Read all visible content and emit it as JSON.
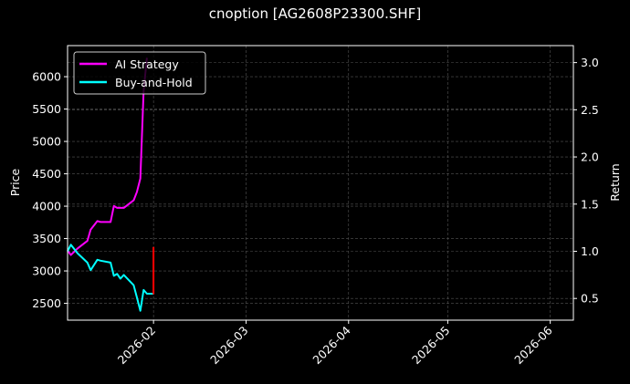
{
  "chart_data": {
    "type": "line",
    "title": "cnoption [AG2608P23300.SHF]",
    "xlabel": "",
    "ylabel": "Price",
    "ylabel_right": "Return",
    "grid": true,
    "legend_position": "upper left",
    "x_ticks": [
      "2026-02",
      "2026-03",
      "2026-04",
      "2026-05",
      "2026-06"
    ],
    "y_ticks_left": [
      2500,
      3000,
      3500,
      4000,
      4500,
      5000,
      5500,
      6000
    ],
    "y_ticks_right": [
      0.5,
      1.0,
      1.5,
      2.0,
      2.5,
      3.0
    ],
    "ylim_left": [
      2240,
      6480
    ],
    "ylim_right": [
      0.27,
      3.18
    ],
    "xlim": [
      "2026-01-06",
      "2026-06-08"
    ],
    "series": [
      {
        "name": "AI Strategy",
        "axis": "right",
        "color": "#ff00ff",
        "x": [
          "2026-01-06",
          "2026-01-07",
          "2026-01-09",
          "2026-01-12",
          "2026-01-13",
          "2026-01-15",
          "2026-01-16",
          "2026-01-19",
          "2026-01-20",
          "2026-01-21",
          "2026-01-23",
          "2026-01-26",
          "2026-01-27",
          "2026-01-28",
          "2026-01-29",
          "2026-01-30"
        ],
        "values": [
          1.01,
          0.96,
          1.03,
          1.11,
          1.23,
          1.32,
          1.31,
          1.31,
          1.48,
          1.46,
          1.46,
          1.54,
          1.63,
          1.77,
          2.7,
          3.05
        ]
      },
      {
        "name": "Buy-and-Hold",
        "axis": "right",
        "color": "#00ffff",
        "x": [
          "2026-01-06",
          "2026-01-07",
          "2026-01-09",
          "2026-01-12",
          "2026-01-13",
          "2026-01-15",
          "2026-01-16",
          "2026-01-19",
          "2026-01-20",
          "2026-01-21",
          "2026-01-22",
          "2026-01-23",
          "2026-01-26",
          "2026-01-27",
          "2026-01-28",
          "2026-01-29",
          "2026-01-30",
          "2026-02-01"
        ],
        "values": [
          1.0,
          1.07,
          0.98,
          0.88,
          0.8,
          0.91,
          0.9,
          0.88,
          0.74,
          0.76,
          0.71,
          0.75,
          0.64,
          0.51,
          0.37,
          0.59,
          0.55,
          0.55
        ]
      },
      {
        "name": "Price",
        "axis": "left",
        "color": "#ff0000",
        "x": [
          "2026-02-01",
          "2026-02-01"
        ],
        "values": [
          3370,
          2640
        ]
      }
    ]
  },
  "legend": {
    "items": [
      {
        "label": "AI Strategy",
        "color": "#ff00ff"
      },
      {
        "label": "Buy-and-Hold",
        "color": "#00ffff"
      }
    ]
  }
}
